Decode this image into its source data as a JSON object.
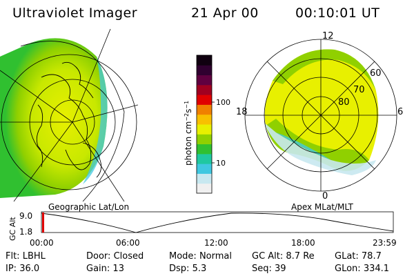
{
  "header": {
    "instrument": "Ultraviolet Imager",
    "date": "21 Apr 00",
    "time": "00:10:01  UT"
  },
  "geo_panel": {
    "label": "Geographic Lat/Lon"
  },
  "apex_panel": {
    "label": "Apex MLat/MLT",
    "mlt_labels": [
      "12",
      "18",
      "6",
      "0"
    ],
    "lat_labels": [
      "60",
      "70",
      "80"
    ]
  },
  "colorbar": {
    "unit_label": "photon cm",
    "unit_exp1": "−2",
    "unit_mid": "s",
    "unit_exp2": "−1",
    "tick_labels": [
      "100",
      "10"
    ],
    "colors": [
      "#f0f0f0",
      "#c8e8f0",
      "#40c8e0",
      "#20c8a0",
      "#30c030",
      "#90d000",
      "#e8f000",
      "#f8c000",
      "#f08000",
      "#e00000",
      "#a00020",
      "#600040",
      "#300030",
      "#100010"
    ]
  },
  "timeline": {
    "axis_label": "GC Alt",
    "y_ticks": [
      "9.0",
      "1.8"
    ],
    "x_ticks": [
      "00:00",
      "06:00",
      "12:00",
      "18:00",
      "23:59"
    ],
    "marker_color": "#e00000"
  },
  "info": {
    "row1": [
      {
        "label": "Flt:",
        "value": "LBHL"
      },
      {
        "label": "Door:",
        "value": "Closed"
      },
      {
        "label": "Mode:",
        "value": "Normal"
      },
      {
        "label": "GC Alt:",
        "value": "8.7 Re"
      },
      {
        "label": "GLat:",
        "value": "78.7"
      }
    ],
    "row2": [
      {
        "label": "IP:",
        "value": "36.0"
      },
      {
        "label": "Gain:",
        "value": "13"
      },
      {
        "label": "Dsp:",
        "value": "5.3"
      },
      {
        "label": "Seq:",
        "value": "39"
      },
      {
        "label": "GLon:",
        "value": "334.1"
      }
    ]
  },
  "colors": {
    "aurora_yellow": "#e8f000",
    "aurora_green": "#90d000",
    "aurora_darkgreen": "#30c030",
    "aurora_cyan": "#40c8e0",
    "aurora_lightcyan": "#c8e8f0"
  }
}
